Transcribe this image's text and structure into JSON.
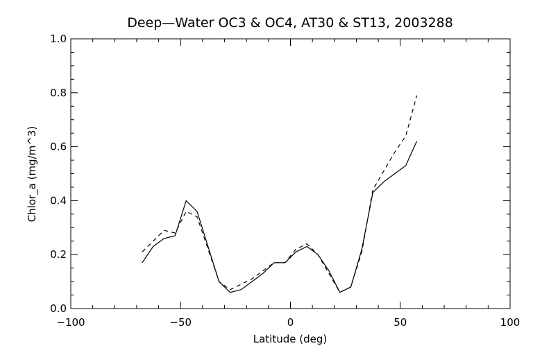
{
  "chart_data": {
    "type": "line",
    "title": "Deep—Water OC3 & OC4, AT30 & ST13, 2003288",
    "xlabel": "Latitude (deg)",
    "ylabel": "Chlor_a (mg/m^3)",
    "xlim": [
      -100,
      100
    ],
    "ylim": [
      0.0,
      1.0
    ],
    "x_ticks": [
      -100,
      -50,
      0,
      50,
      100
    ],
    "x_tick_labels": [
      "−100",
      "−50",
      "0",
      "50",
      "100"
    ],
    "y_ticks": [
      0.0,
      0.2,
      0.4,
      0.6,
      0.8,
      1.0
    ],
    "y_tick_labels": [
      "0.0",
      "0.2",
      "0.4",
      "0.6",
      "0.8",
      "1.0"
    ],
    "grid": false,
    "series": [
      {
        "style": "solid",
        "x": [
          -67.5,
          -62.5,
          -57.5,
          -52.5,
          -47.5,
          -42.5,
          -37.5,
          -32.5,
          -27.5,
          -22.5,
          -17.5,
          -12.5,
          -7.5,
          -2.5,
          2.5,
          7.5,
          12.5,
          17.5,
          22.5,
          27.5,
          32.5,
          37.5,
          42.5,
          47.5,
          52.5,
          57.5
        ],
        "y": [
          0.17,
          0.23,
          0.26,
          0.27,
          0.4,
          0.36,
          0.23,
          0.1,
          0.06,
          0.07,
          0.1,
          0.13,
          0.17,
          0.17,
          0.21,
          0.23,
          0.2,
          0.14,
          0.06,
          0.08,
          0.22,
          0.43,
          0.47,
          0.5,
          0.53,
          0.62
        ]
      },
      {
        "style": "dashed",
        "x": [
          -67.5,
          -62.5,
          -57.5,
          -52.5,
          -47.5,
          -42.5,
          -37.5,
          -32.5,
          -27.5,
          -22.5,
          -17.5,
          -12.5,
          -7.5,
          -2.5,
          2.5,
          7.5,
          12.5,
          17.5,
          22.5,
          27.5,
          32.5,
          37.5,
          42.5,
          47.5,
          52.5,
          57.5
        ],
        "y": [
          0.21,
          0.25,
          0.29,
          0.28,
          0.36,
          0.34,
          0.22,
          0.1,
          0.07,
          0.09,
          0.11,
          0.14,
          0.17,
          0.17,
          0.22,
          0.24,
          0.2,
          0.13,
          0.06,
          0.08,
          0.21,
          0.44,
          0.51,
          0.58,
          0.64,
          0.79
        ]
      }
    ]
  }
}
